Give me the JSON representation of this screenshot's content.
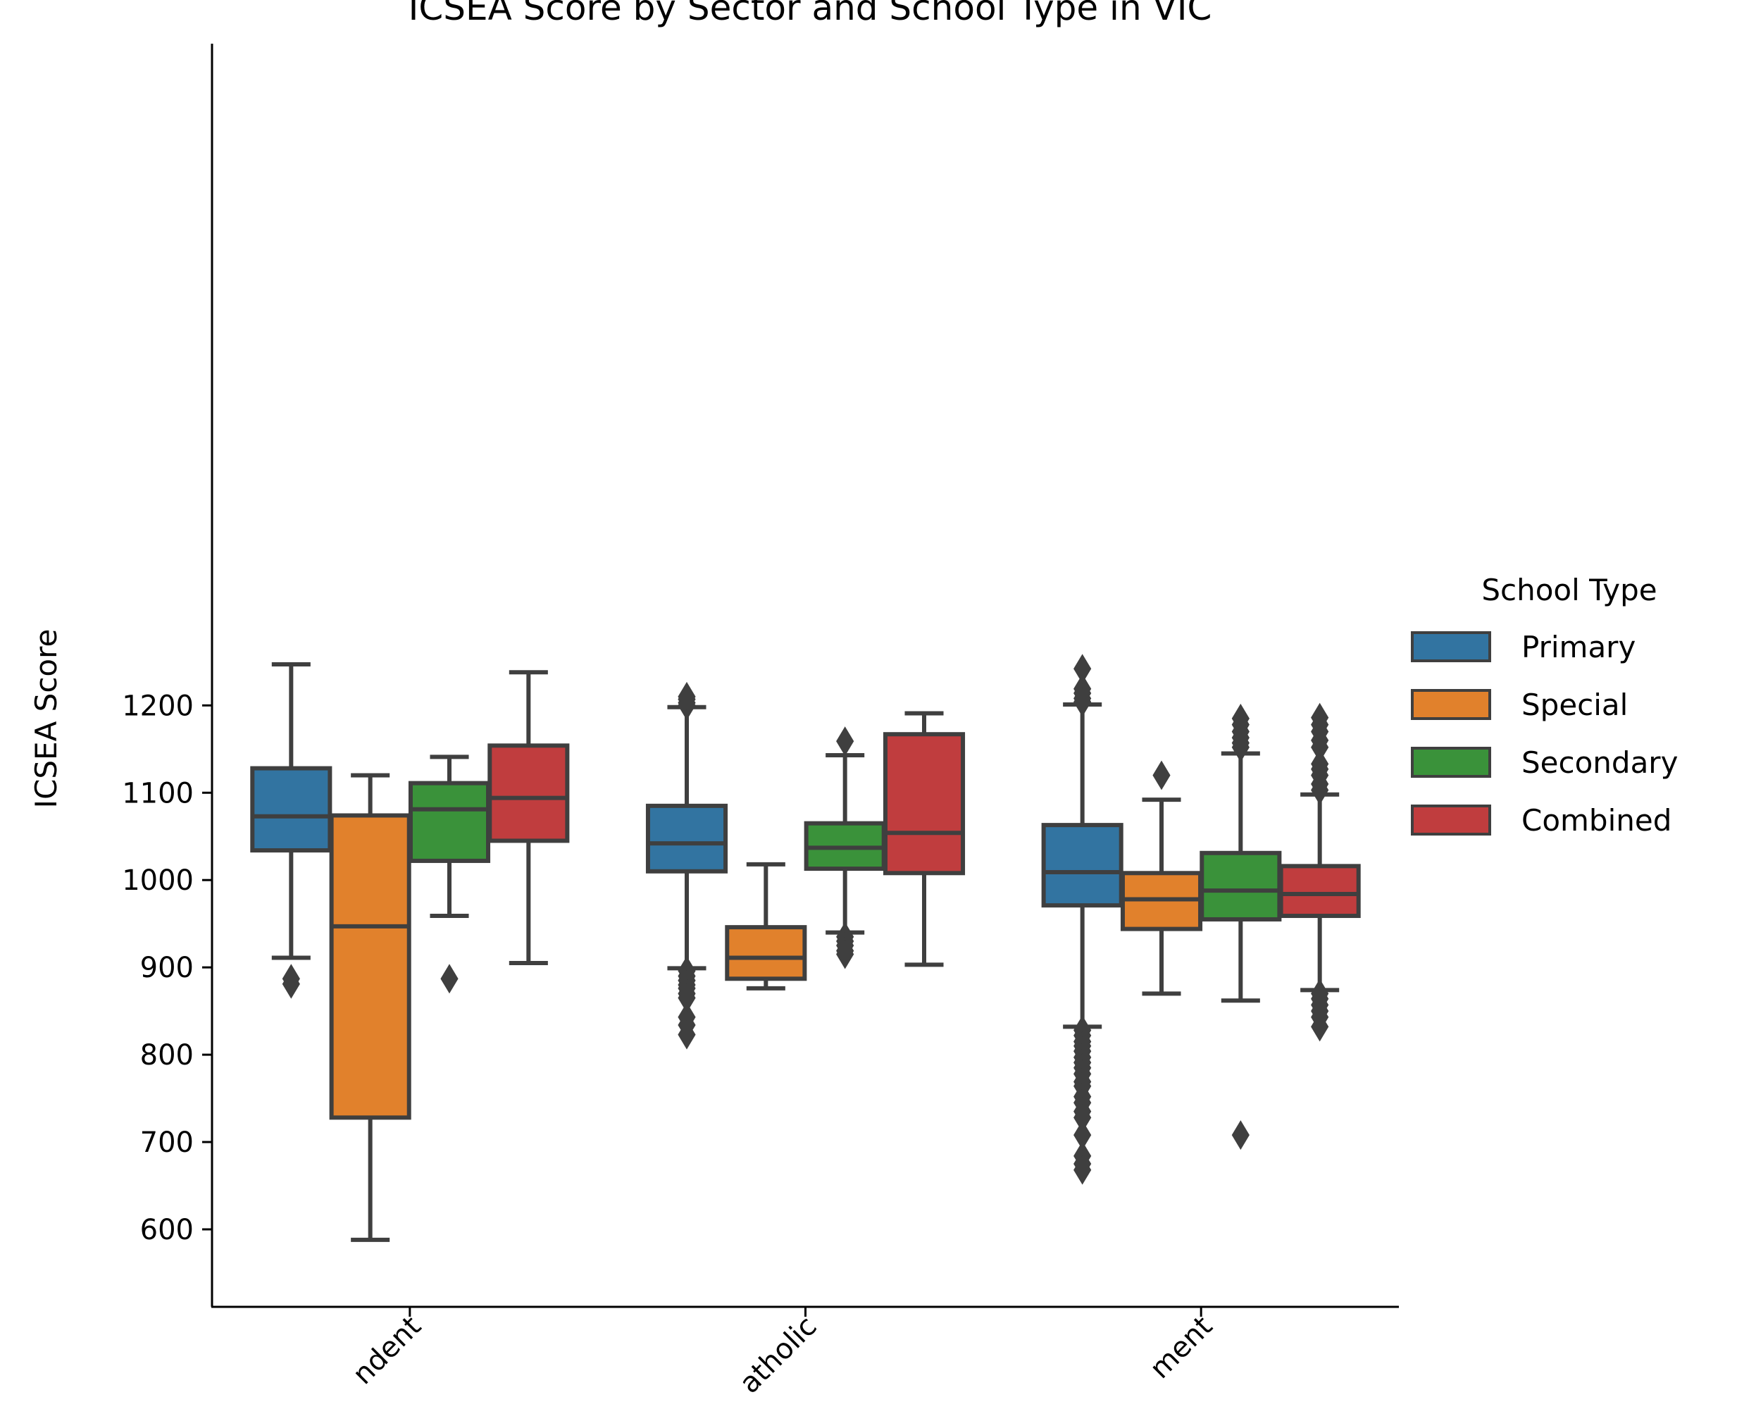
{
  "chart_data": {
    "type": "box",
    "title": "ICSEA Score by Sector and School Type in VIC",
    "xlabel": "",
    "ylabel": "ICSEA Score",
    "ylim": [
      555,
      1280
    ],
    "yticks": [
      600,
      700,
      800,
      900,
      1000,
      1100,
      1200
    ],
    "categories": [
      "Independent",
      "Catholic",
      "Government"
    ],
    "category_tick_text": [
      "ndent",
      "atholic",
      "ment"
    ],
    "legend": {
      "title": "School Type",
      "placement": "right"
    },
    "series": [
      {
        "name": "Primary",
        "color": "#3274a1",
        "boxes": [
          {
            "category": "Independent",
            "q1": 1034,
            "median": 1073,
            "q3": 1128,
            "whisker_low": 911,
            "whisker_high": 1247,
            "outliers": [
              881,
              887
            ]
          },
          {
            "category": "Catholic",
            "q1": 1010,
            "median": 1042,
            "q3": 1085,
            "whisker_low": 899,
            "whisker_high": 1198,
            "outliers": [
              1200,
              1203,
              1207,
              1210,
              896,
              890,
              885,
              880,
              876,
              870,
              865,
              843,
              834,
              823
            ]
          },
          {
            "category": "Government",
            "q1": 971,
            "median": 1009,
            "q3": 1063,
            "whisker_low": 832,
            "whisker_high": 1201,
            "outliers": [
              1242,
              1219,
              1214,
              1208,
              1204,
              828,
              822,
              815,
              810,
              804,
              797,
              791,
              785,
              778,
              769,
              764,
              752,
              745,
              735,
              728,
              708,
              684,
              675,
              668
            ]
          }
        ]
      },
      {
        "name": "Special",
        "color": "#e1812c",
        "boxes": [
          {
            "category": "Independent",
            "q1": 728,
            "median": 947,
            "q3": 1074,
            "whisker_low": 588,
            "whisker_high": 1120,
            "outliers": []
          },
          {
            "category": "Catholic",
            "q1": 887,
            "median": 911,
            "q3": 946,
            "whisker_low": 876,
            "whisker_high": 1018,
            "outliers": []
          },
          {
            "category": "Government",
            "q1": 944,
            "median": 978,
            "q3": 1008,
            "whisker_low": 870,
            "whisker_high": 1092,
            "outliers": [
              1120
            ]
          }
        ]
      },
      {
        "name": "Secondary",
        "color": "#3a923a",
        "boxes": [
          {
            "category": "Independent",
            "q1": 1022,
            "median": 1081,
            "q3": 1111,
            "whisker_low": 959,
            "whisker_high": 1141,
            "outliers": [
              887
            ]
          },
          {
            "category": "Catholic",
            "q1": 1013,
            "median": 1037,
            "q3": 1065,
            "whisker_low": 940,
            "whisker_high": 1143,
            "outliers": [
              1159,
              935,
              930,
              925,
              919,
              915
            ]
          },
          {
            "category": "Government",
            "q1": 955,
            "median": 988,
            "q3": 1031,
            "whisker_low": 862,
            "whisker_high": 1145,
            "outliers": [
              1185,
              1178,
              1170,
              1163,
              1157,
              1152,
              708
            ]
          }
        ]
      },
      {
        "name": "Combined",
        "color": "#c03d3e",
        "boxes": [
          {
            "category": "Independent",
            "q1": 1045,
            "median": 1094,
            "q3": 1154,
            "whisker_low": 905,
            "whisker_high": 1238,
            "outliers": []
          },
          {
            "category": "Catholic",
            "q1": 1008,
            "median": 1054,
            "q3": 1167,
            "whisker_low": 903,
            "whisker_high": 1191,
            "outliers": []
          },
          {
            "category": "Government",
            "q1": 959,
            "median": 984,
            "q3": 1016,
            "whisker_low": 874,
            "whisker_high": 1098,
            "outliers": [
              1186,
              1178,
              1170,
              1160,
              1152,
              1133,
              1127,
              1120,
              1110,
              1103,
              870,
              864,
              857,
              850,
              843,
              832
            ]
          }
        ]
      }
    ]
  }
}
